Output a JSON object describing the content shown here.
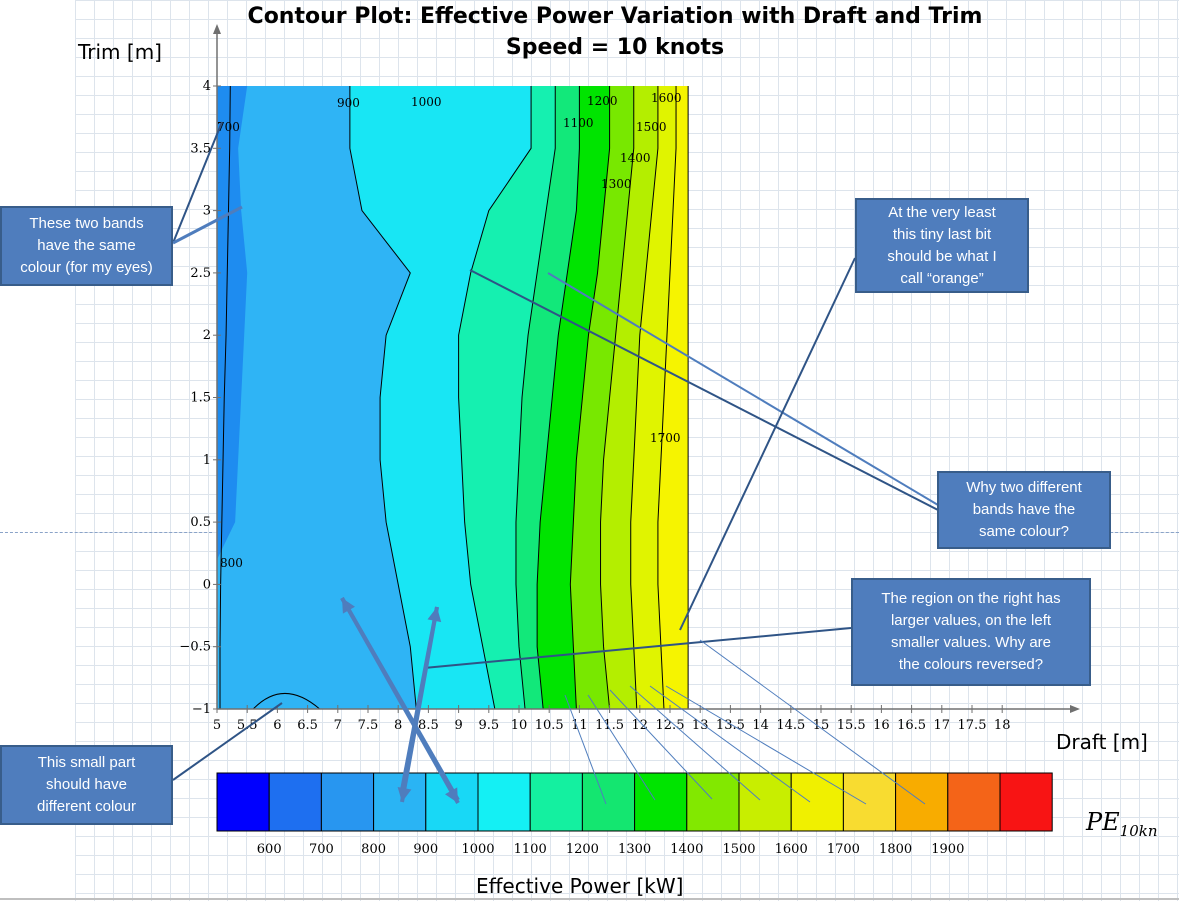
{
  "chart_data": {
    "type": "contour",
    "title": "Contour Plot: Effective Power Variation with Draft and Trim",
    "subtitle": "Speed = 10 knots",
    "xlabel": "Draft [m]",
    "ylabel": "Trim [m]",
    "xlim": [
      5,
      18
    ],
    "ylim": [
      -1,
      4
    ],
    "x_ticks": [
      "5",
      "5.5",
      "6",
      "6.5",
      "7",
      "7.5",
      "8",
      "8.5",
      "9",
      "9.5",
      "10",
      "10.5",
      "11",
      "11.5",
      "12",
      "12.5",
      "13",
      "13.5",
      "14",
      "14.5",
      "15",
      "15.5",
      "16",
      "16.5",
      "17",
      "17.5",
      "18"
    ],
    "y_ticks": [
      "−1",
      "−0.5",
      "0",
      "0.5",
      "1",
      "1.5",
      "2",
      "2.5",
      "3",
      "3.5",
      "4"
    ],
    "data_extent_x": [
      5,
      12.8
    ],
    "contour_levels": [
      {
        "level": 700,
        "label": "700"
      },
      {
        "level": 800,
        "label": "800"
      },
      {
        "level": 900,
        "label": "900"
      },
      {
        "level": 1000,
        "label": "1000"
      },
      {
        "level": 1100,
        "label": "1100"
      },
      {
        "level": 1200,
        "label": "1200"
      },
      {
        "level": 1300,
        "label": "1300"
      },
      {
        "level": 1400,
        "label": "1400"
      },
      {
        "level": 1500,
        "label": "1500"
      },
      {
        "level": 1600,
        "label": "1600"
      },
      {
        "level": 1700,
        "label": "1700"
      }
    ],
    "bands": [
      {
        "x_left": [
          5,
          5.2
        ],
        "color": "#1e8cf0"
      },
      {
        "x_left": [
          5.2,
          8.2
        ],
        "color": "#2fb4f5"
      },
      {
        "x_left": [
          8.2,
          9.6
        ],
        "color": "#18e6f4"
      },
      {
        "x_left": [
          9.6,
          10.2
        ],
        "color": "#15f0b0"
      },
      {
        "x_left": [
          10.2,
          10.6
        ],
        "color": "#12e87a"
      },
      {
        "x_left": [
          10.6,
          11.0
        ],
        "color": "#00e400"
      },
      {
        "x_left": [
          11.0,
          11.5
        ],
        "color": "#78e800"
      },
      {
        "x_left": [
          11.5,
          11.9
        ],
        "color": "#b4ee00"
      },
      {
        "x_left": [
          11.9,
          12.3
        ],
        "color": "#e0f400"
      },
      {
        "x_left": [
          12.3,
          12.8
        ],
        "color": "#f6f400"
      }
    ],
    "colorbar": {
      "label": "Effective Power [kW]",
      "ticks": [
        "600",
        "700",
        "800",
        "900",
        "1000",
        "1100",
        "1200",
        "1300",
        "1400",
        "1500",
        "1600",
        "1700",
        "1800",
        "1900"
      ],
      "colors": [
        "#0000ff",
        "#1e6ff0",
        "#2896f0",
        "#2ab4f4",
        "#18d8f6",
        "#14f0f4",
        "#14f0a0",
        "#14e670",
        "#00e400",
        "#82e800",
        "#c8ee00",
        "#f0f000",
        "#f8dc30",
        "#f8ac00",
        "#f46418",
        "#f81414"
      ]
    },
    "var_label": {
      "main": "PE",
      "sub": "10kn"
    }
  },
  "callouts": [
    {
      "text": "These  two bands\nhave the same\ncolour (for my eyes)"
    },
    {
      "text": "At the very least\nthis tiny last bit\nshould be what I\ncall “orange”"
    },
    {
      "text": "Why two different\nbands have the\nsame colour?"
    },
    {
      "text": "The region on the right has\nlarger values, on the left\nsmaller values. Why are\nthe colours reversed?"
    },
    {
      "text": "This small part\nshould have\ndifferent colour"
    }
  ],
  "colors": {
    "callout_fill": "#4f7dbd",
    "callout_border": "#385d8a",
    "arrow": "#4f7dbd",
    "line_dark": "#2f5486"
  }
}
